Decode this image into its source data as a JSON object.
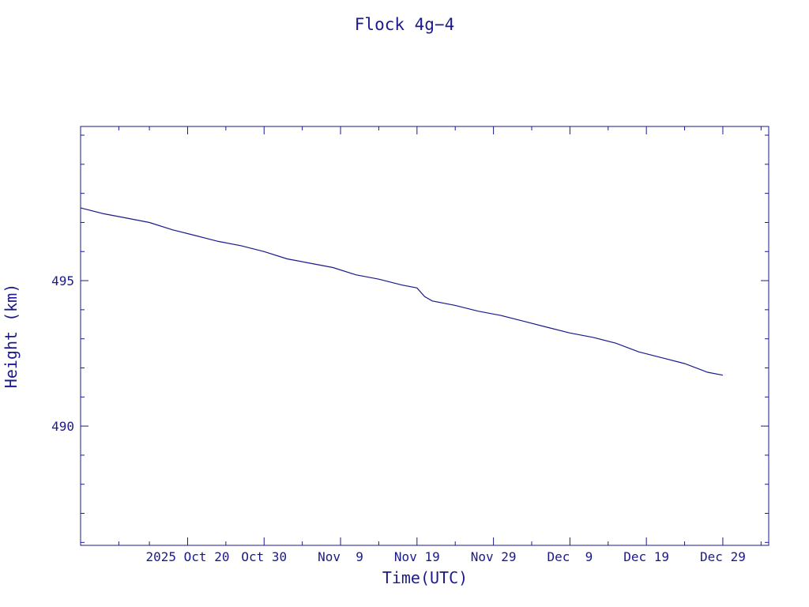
{
  "chart_data": {
    "type": "line",
    "title": "Flock 4g−4",
    "xlabel": "Time(UTC)",
    "ylabel": "Height (km)",
    "x_range": [
      "2025-10-06",
      "2026-01-04"
    ],
    "ylim": [
      485.9,
      500.3
    ],
    "y_ticks": [
      {
        "value": 495,
        "label": "495"
      },
      {
        "value": 490,
        "label": "490"
      }
    ],
    "y_minor_step": 1,
    "x_ticks": [
      {
        "date": "2025-10-20",
        "label": "2025 Oct 20"
      },
      {
        "date": "2025-10-30",
        "label": "Oct 30"
      },
      {
        "date": "2025-11-09",
        "label": "Nov  9"
      },
      {
        "date": "2025-11-19",
        "label": "Nov 19"
      },
      {
        "date": "2025-11-29",
        "label": "Nov 29"
      },
      {
        "date": "2025-12-09",
        "label": "Dec  9"
      },
      {
        "date": "2025-12-19",
        "label": "Dec 19"
      },
      {
        "date": "2025-12-29",
        "label": "Dec 29"
      }
    ],
    "x_minor_dates": [
      "2025-10-11",
      "2025-10-15",
      "2025-10-25",
      "2025-11-04",
      "2025-11-14",
      "2025-11-24",
      "2025-12-04",
      "2025-12-14",
      "2025-12-24",
      "2026-01-03"
    ],
    "grid": false,
    "color": "#1a1a8c",
    "series": [
      {
        "points": [
          [
            "2025-10-06",
            497.5
          ],
          [
            "2025-10-09",
            497.3
          ],
          [
            "2025-10-12",
            497.15
          ],
          [
            "2025-10-15",
            497.0
          ],
          [
            "2025-10-18",
            496.75
          ],
          [
            "2025-10-21",
            496.55
          ],
          [
            "2025-10-24",
            496.35
          ],
          [
            "2025-10-27",
            496.2
          ],
          [
            "2025-10-30",
            496.0
          ],
          [
            "2025-11-02",
            495.75
          ],
          [
            "2025-11-05",
            495.6
          ],
          [
            "2025-11-08",
            495.45
          ],
          [
            "2025-11-11",
            495.2
          ],
          [
            "2025-11-14",
            495.05
          ],
          [
            "2025-11-17",
            494.85
          ],
          [
            "2025-11-19",
            494.75
          ],
          [
            "2025-11-20",
            494.45
          ],
          [
            "2025-11-21",
            494.3
          ],
          [
            "2025-11-24",
            494.15
          ],
          [
            "2025-11-27",
            493.95
          ],
          [
            "2025-11-30",
            493.8
          ],
          [
            "2025-12-03",
            493.6
          ],
          [
            "2025-12-06",
            493.4
          ],
          [
            "2025-12-09",
            493.2
          ],
          [
            "2025-12-12",
            493.05
          ],
          [
            "2025-12-15",
            492.85
          ],
          [
            "2025-12-18",
            492.55
          ],
          [
            "2025-12-21",
            492.35
          ],
          [
            "2025-12-24",
            492.15
          ],
          [
            "2025-12-27",
            491.85
          ],
          [
            "2025-12-29",
            491.75
          ]
        ]
      }
    ]
  }
}
